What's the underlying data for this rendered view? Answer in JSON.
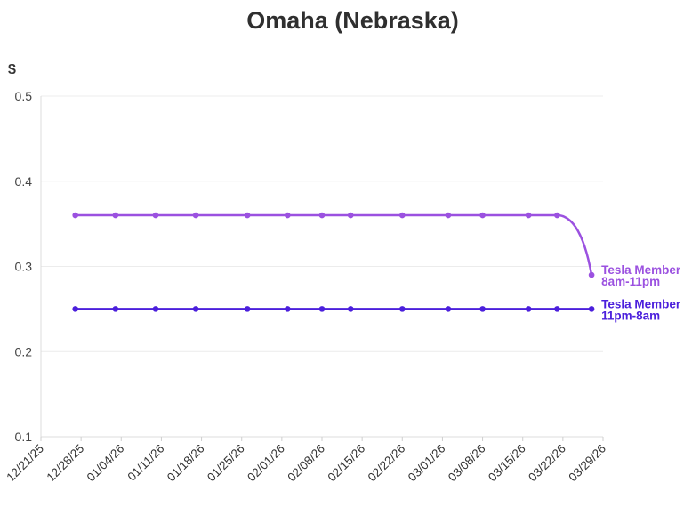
{
  "chart_data": {
    "type": "line",
    "title": "Omaha (Nebraska)",
    "ylabel": "$",
    "ylim": [
      0.1,
      0.5
    ],
    "yticks": [
      "0.1",
      "0.2",
      "0.3",
      "0.4",
      "0.5"
    ],
    "xtick_labels": [
      "12/21/25",
      "12/28/25",
      "01/04/26",
      "01/11/26",
      "01/18/26",
      "01/25/26",
      "02/01/26",
      "02/08/26",
      "02/15/26",
      "02/22/26",
      "03/01/26",
      "03/08/26",
      "03/15/26",
      "03/22/26",
      "03/29/26"
    ],
    "xlim": [
      "2025-12-21",
      "2026-03-29"
    ],
    "x": [
      "2025-12-27",
      "2026-01-03",
      "2026-01-10",
      "2026-01-17",
      "2026-01-26",
      "2026-02-02",
      "2026-02-08",
      "2026-02-13",
      "2026-02-22",
      "2026-03-02",
      "2026-03-08",
      "2026-03-16",
      "2026-03-21",
      "2026-03-27"
    ],
    "series": [
      {
        "name_line1": "Tesla Member",
        "name_line2": "8am-11pm",
        "color": "#9b51e0",
        "values": [
          0.36,
          0.36,
          0.36,
          0.36,
          0.36,
          0.36,
          0.36,
          0.36,
          0.36,
          0.36,
          0.36,
          0.36,
          0.36,
          0.29
        ]
      },
      {
        "name_line1": "Tesla Member",
        "name_line2": "11pm-8am",
        "color": "#4b1fdc",
        "values": [
          0.25,
          0.25,
          0.25,
          0.25,
          0.25,
          0.25,
          0.25,
          0.25,
          0.25,
          0.25,
          0.25,
          0.25,
          0.25,
          0.25
        ]
      }
    ],
    "grid": true,
    "legend": "inline-right"
  }
}
